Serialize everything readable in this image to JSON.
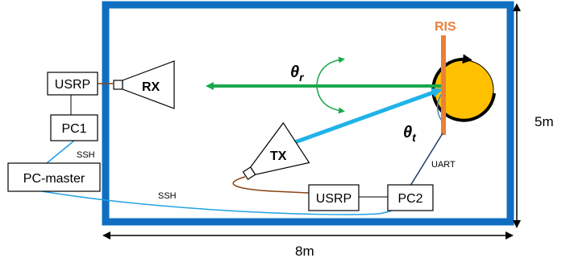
{
  "labels": {
    "ris": "RIS",
    "rx": "RX",
    "tx": "TX",
    "usrp_left": "USRP",
    "usrp_bottom": "USRP",
    "pc1": "PC1",
    "pc2": "PC2",
    "pc_master": "PC-master",
    "ssh_upper": "SSH",
    "ssh_lower": "SSH",
    "uart": "UART",
    "dim_height": "5m",
    "dim_width": "8m",
    "theta_r_base": "θ",
    "theta_r_sub": "r",
    "theta_t_base": "θ",
    "theta_t_sub": "t"
  },
  "colors": {
    "room_border": "#0f6ec0",
    "ris": "#e8803a",
    "rx_beam": "#1aa84a",
    "tx_beam": "#1fb3e8",
    "disk": "#ffc000",
    "rf_cable": "#8b4513",
    "ssh_link": "#1fa2e0",
    "uart_link": "#1f3a6b",
    "ethernet": "#7f7f7f",
    "angle_arc": "#4a86c5",
    "ris_label": "#e8803a"
  },
  "icons": {
    "rx_antenna": "horn-antenna-icon",
    "tx_antenna": "horn-antenna-icon",
    "rotation": "rotation-arrow-icon"
  }
}
